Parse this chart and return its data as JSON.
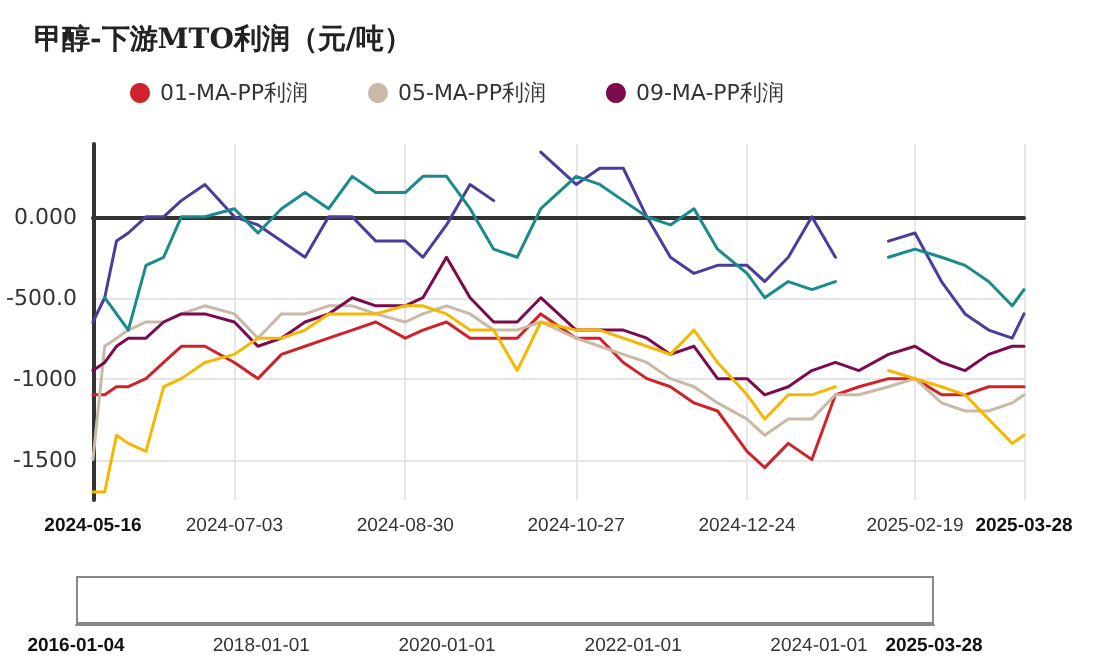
{
  "chart_data": {
    "type": "line",
    "title": "甲醇-下游MTO利润（元/吨）",
    "x": [
      "2024-05-16",
      "2024-05-20",
      "2024-05-24",
      "2024-05-28",
      "2024-06-03",
      "2024-06-09",
      "2024-06-15",
      "2024-06-23",
      "2024-07-03",
      "2024-07-11",
      "2024-07-19",
      "2024-07-27",
      "2024-08-04",
      "2024-08-12",
      "2024-08-20",
      "2024-08-30",
      "2024-09-05",
      "2024-09-13",
      "2024-09-21",
      "2024-09-29",
      "2024-10-07",
      "2024-10-15",
      "2024-10-27",
      "2024-11-04",
      "2024-11-12",
      "2024-11-20",
      "2024-11-28",
      "2024-12-06",
      "2024-12-14",
      "2024-12-24",
      "2024-12-30",
      "2025-01-07",
      "2025-01-15",
      "2025-01-23",
      "2025-01-31",
      "2025-02-10",
      "2025-02-19",
      "2025-02-28",
      "2025-03-08",
      "2025-03-16",
      "2025-03-24",
      "2025-03-28"
    ],
    "series": [
      {
        "name": "01-MA-PP利润",
        "color": "#d0222a",
        "values": [
          -1100,
          -1100,
          -1050,
          -1050,
          -1000,
          -900,
          -800,
          -800,
          -900,
          -1000,
          -850,
          -800,
          -750,
          -700,
          -650,
          -750,
          -700,
          -650,
          -750,
          -750,
          -750,
          -600,
          -750,
          -750,
          -900,
          -1000,
          -1050,
          -1150,
          -1200,
          -1450,
          -1550,
          -1400,
          -1500,
          -1100,
          -1050,
          -1000,
          -1000,
          -1100,
          -1100,
          -1050,
          -1050,
          -1050
        ]
      },
      {
        "name": "05-MA-PP利润",
        "color": "#c9b9a6",
        "values": [
          -1500,
          -800,
          -750,
          -700,
          -650,
          -650,
          -600,
          -550,
          -600,
          -750,
          -600,
          -600,
          -550,
          -550,
          -600,
          -650,
          -600,
          -550,
          -600,
          -700,
          -700,
          -650,
          -750,
          -800,
          -850,
          -900,
          -1000,
          -1050,
          -1150,
          -1250,
          -1350,
          -1250,
          -1250,
          -1100,
          -1100,
          -1050,
          -1000,
          -1150,
          -1200,
          -1200,
          -1150,
          -1100
        ]
      },
      {
        "name": "09-MA-PP利润",
        "color": "#7b0a4f",
        "values": [
          -950,
          -900,
          -800,
          -750,
          -750,
          -650,
          -600,
          -600,
          -650,
          -800,
          -750,
          -650,
          -600,
          -500,
          -550,
          -550,
          -500,
          -250,
          -500,
          -650,
          -650,
          -500,
          -700,
          -700,
          -700,
          -750,
          -850,
          -800,
          -1000,
          -1000,
          -1100,
          -1050,
          -950,
          -900,
          -950,
          -850,
          -800,
          -900,
          -950,
          -850,
          -800,
          -800
        ]
      },
      {
        "color": "#4b3e9a",
        "values": [
          -650,
          -500,
          -150,
          -100,
          0,
          0,
          100,
          200,
          0,
          -50,
          -150,
          -250,
          0,
          0,
          -150,
          -150,
          -250,
          -50,
          200,
          100,
          null,
          400,
          200,
          300,
          300,
          0,
          -250,
          -350,
          -300,
          -300,
          -400,
          -250,
          0,
          -250,
          null,
          -150,
          -100,
          -400,
          -600,
          -700,
          -750,
          -600
        ]
      },
      {
        "color": "#1a8a8a",
        "values": [
          null,
          -500,
          -600,
          -700,
          -300,
          -250,
          0,
          0,
          50,
          -100,
          50,
          150,
          50,
          250,
          150,
          150,
          250,
          250,
          50,
          -200,
          -250,
          50,
          250,
          200,
          100,
          0,
          -50,
          50,
          -200,
          -350,
          -500,
          -400,
          -450,
          -400,
          null,
          -250,
          -200,
          -250,
          -300,
          -400,
          -550,
          -450
        ]
      },
      {
        "color": "#f5b800",
        "values": [
          -1700,
          -1700,
          -1350,
          -1400,
          -1450,
          -1050,
          -1000,
          -900,
          -850,
          -750,
          -750,
          -700,
          -600,
          -600,
          -600,
          -550,
          -550,
          -600,
          -700,
          -700,
          -950,
          -650,
          -700,
          -700,
          -750,
          -800,
          -850,
          -700,
          -900,
          -1100,
          -1250,
          -1100,
          -1100,
          -1050,
          null,
          -950,
          -1000,
          -1050,
          -1100,
          -1250,
          -1400,
          -1350
        ]
      }
    ],
    "xlim": [
      "2024-05-16",
      "2025-03-28"
    ],
    "xticks": [
      "2024-05-16",
      "2024-07-03",
      "2024-08-30",
      "2024-10-27",
      "2024-12-24",
      "2025-02-19",
      "2025-03-28"
    ],
    "ylim": [
      -1750,
      450
    ],
    "yticks": [
      {
        "value": 0,
        "label": "0.000"
      },
      {
        "value": -500,
        "label": "-500.0"
      },
      -1000,
      -1500
    ],
    "x2lim": [
      "2016-01-04",
      "2025-03-28"
    ],
    "x2ticks": [
      "2016-01-04",
      "2018-01-01",
      "2020-01-01",
      "2022-01-01",
      "2024-01-01",
      "2025-03-28"
    ],
    "grid": true,
    "legend": "top",
    "marker": "none",
    "line_style": "solid"
  }
}
